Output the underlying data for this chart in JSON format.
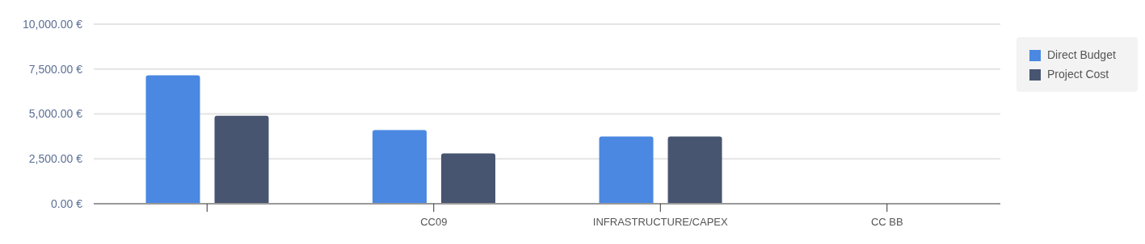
{
  "chart_data": {
    "type": "bar",
    "categories": [
      null,
      "CC09",
      "INFRASTRUCTURE/CAPEX",
      "CC BB"
    ],
    "series": [
      {
        "name": "Direct Budget",
        "color": "#4a88e2",
        "values": [
          7150,
          4100,
          3750,
          0
        ]
      },
      {
        "name": "Project Cost",
        "color": "#485571",
        "values": [
          4900,
          2800,
          3750,
          0
        ]
      }
    ],
    "ylim": [
      0,
      10000
    ],
    "yticks": [
      {
        "value": 0,
        "label": "0.00 €"
      },
      {
        "value": 2500,
        "label": "2,500.00 €"
      },
      {
        "value": 5000,
        "label": "5,000.00 €"
      },
      {
        "value": 7500,
        "label": "7,500.00 €"
      },
      {
        "value": 10000,
        "label": "10,000.00 €"
      }
    ],
    "grid": "y",
    "legend": "top right"
  }
}
